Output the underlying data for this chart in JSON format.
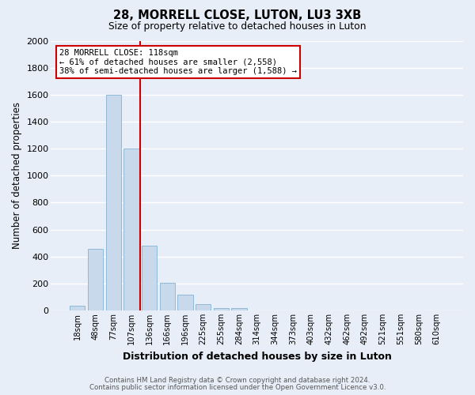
{
  "title": "28, MORRELL CLOSE, LUTON, LU3 3XB",
  "subtitle": "Size of property relative to detached houses in Luton",
  "xlabel": "Distribution of detached houses by size in Luton",
  "ylabel": "Number of detached properties",
  "bar_labels": [
    "18sqm",
    "48sqm",
    "77sqm",
    "107sqm",
    "136sqm",
    "166sqm",
    "196sqm",
    "225sqm",
    "255sqm",
    "284sqm",
    "314sqm",
    "344sqm",
    "373sqm",
    "403sqm",
    "432sqm",
    "462sqm",
    "492sqm",
    "521sqm",
    "551sqm",
    "580sqm",
    "610sqm"
  ],
  "bar_values": [
    35,
    455,
    1600,
    1200,
    480,
    205,
    115,
    45,
    20,
    20,
    0,
    0,
    0,
    0,
    0,
    0,
    0,
    0,
    0,
    0,
    0
  ],
  "bar_color": "#c9d9ec",
  "bar_edge_color": "#8fb8d8",
  "vline_x": 3.5,
  "vline_color": "#cc0000",
  "ylim": [
    0,
    2000
  ],
  "yticks": [
    0,
    200,
    400,
    600,
    800,
    1000,
    1200,
    1400,
    1600,
    1800,
    2000
  ],
  "annotation_title": "28 MORRELL CLOSE: 118sqm",
  "annotation_line1": "← 61% of detached houses are smaller (2,558)",
  "annotation_line2": "38% of semi-detached houses are larger (1,588) →",
  "annotation_box_facecolor": "#ffffff",
  "annotation_box_edgecolor": "#cc0000",
  "footer_line1": "Contains HM Land Registry data © Crown copyright and database right 2024.",
  "footer_line2": "Contains public sector information licensed under the Open Government Licence v3.0.",
  "fig_bg_color": "#e8eef8",
  "plot_bg_color": "#e8eef8",
  "grid_color": "#ffffff",
  "figsize": [
    6.0,
    5.0
  ],
  "dpi": 100
}
